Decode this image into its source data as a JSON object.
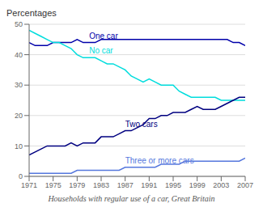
{
  "chart_data": {
    "type": "line",
    "title": "Percentages",
    "subtitle": "Households with regular use of a car, Great Britain",
    "x": [
      1971,
      1972,
      1973,
      1974,
      1975,
      1976,
      1977,
      1978,
      1979,
      1980,
      1981,
      1982,
      1983,
      1984,
      1985,
      1986,
      1987,
      1988,
      1989,
      1990,
      1991,
      1992,
      1993,
      1994,
      1995,
      1996,
      1997,
      1998,
      1999,
      2000,
      2001,
      2002,
      2003,
      2004,
      2005,
      2006,
      2007
    ],
    "series": [
      {
        "name": "One car",
        "color": "#0000aa",
        "values": [
          44,
          43,
          43,
          43,
          44,
          44,
          44,
          44,
          45,
          44,
          44,
          44,
          45,
          45,
          45,
          45,
          45,
          45,
          45,
          45,
          45,
          45,
          45,
          45,
          45,
          45,
          45,
          45,
          45,
          45,
          45,
          45,
          45,
          45,
          44,
          44,
          43
        ]
      },
      {
        "name": "No car",
        "color": "#00dddd",
        "values": [
          48,
          47,
          46,
          45,
          44,
          44,
          43,
          42,
          40,
          39,
          39,
          39,
          38,
          37,
          37,
          36,
          35,
          33,
          32,
          31,
          32,
          31,
          30,
          30,
          30,
          28,
          27,
          26,
          26,
          26,
          26,
          26,
          25,
          25,
          25,
          25,
          25
        ]
      },
      {
        "name": "Two cars",
        "color": "#000080",
        "values": [
          7,
          8,
          9,
          10,
          10,
          10,
          10,
          11,
          10,
          11,
          11,
          11,
          13,
          13,
          13,
          14,
          15,
          15,
          16,
          17,
          19,
          19,
          20,
          20,
          21,
          21,
          21,
          22,
          23,
          22,
          22,
          22,
          23,
          24,
          25,
          26,
          26
        ]
      },
      {
        "name": "Three or more cars",
        "color": "#5577dd",
        "values": [
          1,
          1,
          1,
          1,
          1,
          1,
          1,
          1,
          2,
          2,
          2,
          2,
          2,
          2,
          2,
          2,
          3,
          3,
          3,
          3,
          3,
          3,
          4,
          4,
          4,
          4,
          5,
          5,
          5,
          5,
          5,
          5,
          5,
          5,
          5,
          5,
          6
        ]
      }
    ],
    "xlim": [
      1971,
      2007
    ],
    "ylim": [
      0,
      50
    ],
    "xticks": [
      1971,
      1975,
      1979,
      1983,
      1987,
      1991,
      1995,
      1999,
      2003,
      2007
    ],
    "yticks": [
      0,
      10,
      20,
      30,
      40,
      50
    ],
    "grid": true
  }
}
